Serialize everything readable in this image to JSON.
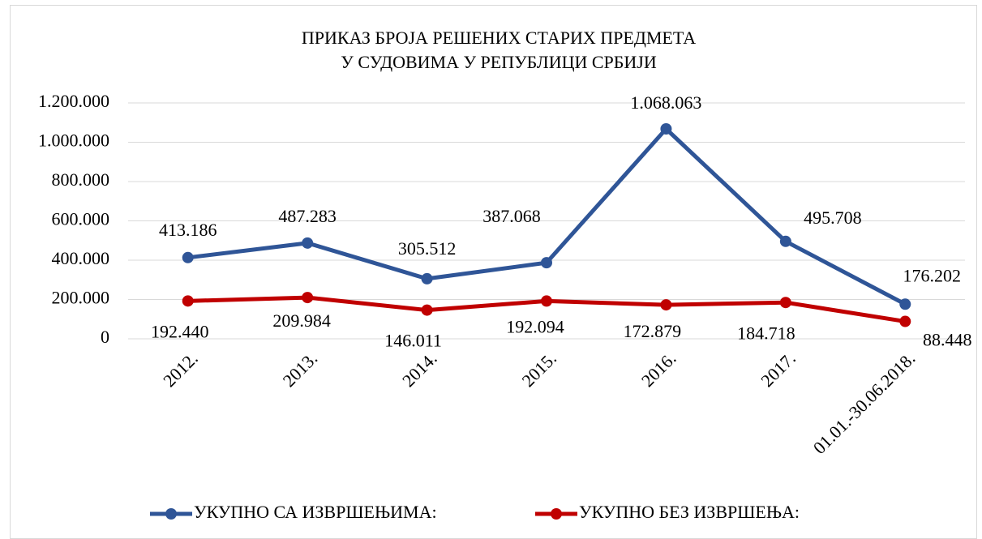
{
  "chart_data": {
    "type": "line",
    "title": [
      "ПРИКАЗ БРОЈА РЕШЕНИХ СТАРИХ ПРЕДМЕТА",
      "У СУДОВИМА У РЕПУБЛИЦИ СРБИЈИ"
    ],
    "categories": [
      "2012.",
      "2013.",
      "2014.",
      "2015.",
      "2016.",
      "2017.",
      "01.01.-30.06.2018."
    ],
    "series": [
      {
        "name": "УКУПНО СА ИЗВРШЕЊИМА:",
        "color": "#2f5597",
        "values": [
          413186,
          487283,
          305512,
          387068,
          1068063,
          495708,
          176202
        ],
        "value_labels": [
          "413.186",
          "487.283",
          "305.512",
          "387.068",
          "1.068.063",
          "495.708",
          "176.202"
        ]
      },
      {
        "name": "УКУПНО БЕЗ ИЗВРШЕЊА:",
        "color": "#c00000",
        "values": [
          192440,
          209984,
          146011,
          192094,
          172879,
          184718,
          88448
        ],
        "value_labels": [
          "192.440",
          "209.984",
          "146.011",
          "192.094",
          "172.879",
          "184.718",
          "88.448"
        ]
      }
    ],
    "ylim": [
      0,
      1200000
    ],
    "yticks": [
      0,
      {
        "value": 200000,
        "label": "200.000"
      },
      {
        "value": 400000,
        "label": "400.000"
      },
      {
        "value": 600000,
        "label": "600.000"
      },
      {
        "value": 800000,
        "label": "800.000"
      },
      {
        "value": 1000000,
        "label": "1.000.000"
      },
      {
        "value": 1200000,
        "label": "1.200.000"
      }
    ],
    "grid": true,
    "legend": "bottom"
  }
}
